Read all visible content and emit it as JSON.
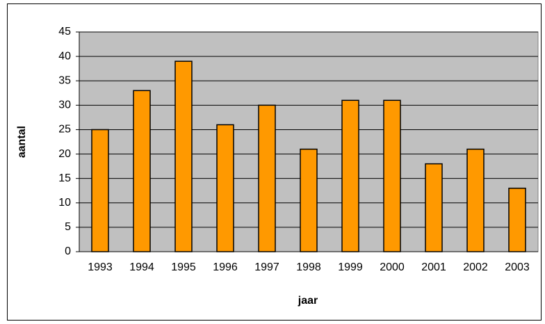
{
  "chart_data": {
    "type": "bar",
    "x_label": "jaar",
    "y_label": "aantal",
    "categories": [
      "1993",
      "1994",
      "1995",
      "1996",
      "1997",
      "1998",
      "1999",
      "2000",
      "2001",
      "2002",
      "2003"
    ],
    "values": [
      25,
      33,
      39,
      26,
      30,
      21,
      31,
      31,
      18,
      21,
      13
    ],
    "color": "#ff9900",
    "ylim": [
      0,
      45
    ],
    "yticks": [
      0,
      5,
      10,
      15,
      20,
      25,
      30,
      35,
      40,
      45
    ],
    "grid": true
  }
}
